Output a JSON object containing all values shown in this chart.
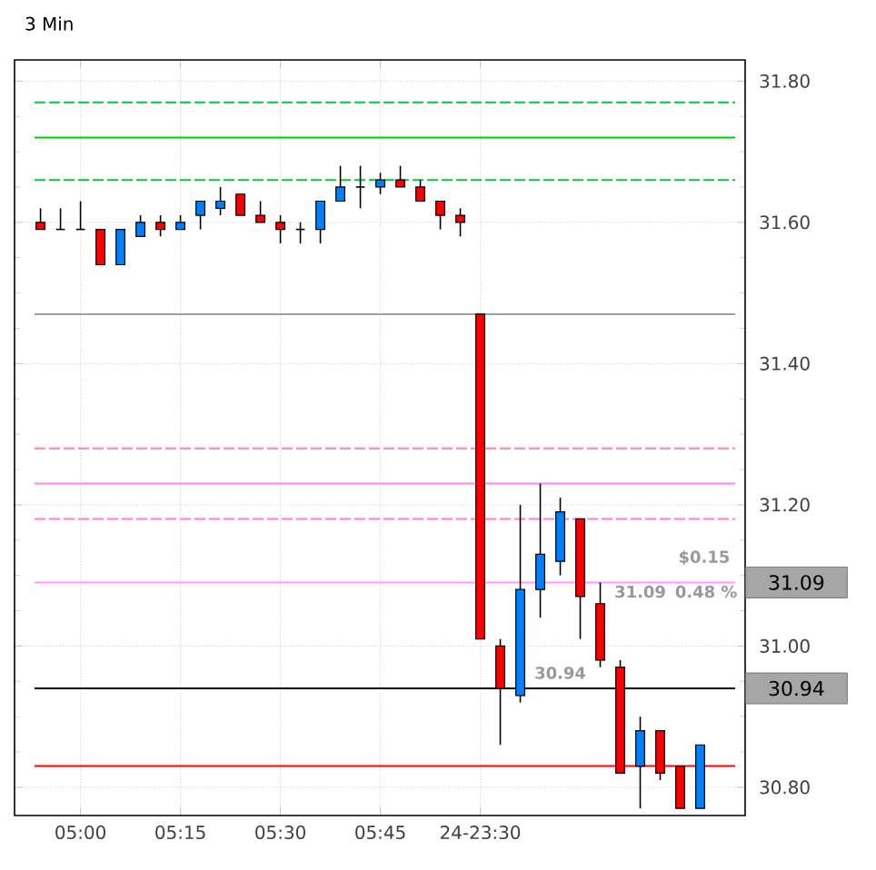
{
  "chart_data": {
    "type": "candlestick",
    "title": "3 Min",
    "categories": [
      null,
      null,
      "05:00",
      null,
      null,
      null,
      null,
      "05:15",
      null,
      null,
      null,
      null,
      "05:30",
      null,
      null,
      null,
      null,
      "05:45",
      null,
      null,
      null,
      null,
      "24-23:30",
      null,
      null,
      null,
      null,
      null,
      null,
      null,
      null,
      null,
      null,
      null
    ],
    "ohlc": [
      [
        31.6,
        31.62,
        31.59,
        31.59
      ],
      [
        31.59,
        31.62,
        31.59,
        31.59
      ],
      [
        31.59,
        31.63,
        31.59,
        31.59
      ],
      [
        31.59,
        31.59,
        31.54,
        31.54
      ],
      [
        31.54,
        31.59,
        31.54,
        31.59
      ],
      [
        31.58,
        31.61,
        31.58,
        31.6
      ],
      [
        31.6,
        31.61,
        31.58,
        31.59
      ],
      [
        31.59,
        31.61,
        31.59,
        31.6
      ],
      [
        31.61,
        31.63,
        31.59,
        31.63
      ],
      [
        31.62,
        31.65,
        31.61,
        31.63
      ],
      [
        31.64,
        31.64,
        31.61,
        31.61
      ],
      [
        31.61,
        31.63,
        31.6,
        31.6
      ],
      [
        31.6,
        31.61,
        31.57,
        31.59
      ],
      [
        31.59,
        31.6,
        31.57,
        31.59
      ],
      [
        31.59,
        31.63,
        31.57,
        31.63
      ],
      [
        31.63,
        31.68,
        31.63,
        31.65
      ],
      [
        31.65,
        31.68,
        31.62,
        31.65
      ],
      [
        31.65,
        31.67,
        31.64,
        31.66
      ],
      [
        31.66,
        31.68,
        31.65,
        31.65
      ],
      [
        31.65,
        31.66,
        31.63,
        31.63
      ],
      [
        31.63,
        31.63,
        31.59,
        31.61
      ],
      [
        31.61,
        31.62,
        31.58,
        31.6
      ],
      [
        31.47,
        31.47,
        31.01,
        31.01
      ],
      [
        31.0,
        31.01,
        30.86,
        30.94
      ],
      [
        30.93,
        31.2,
        30.92,
        31.08
      ],
      [
        31.08,
        31.23,
        31.04,
        31.13
      ],
      [
        31.12,
        31.21,
        31.1,
        31.19
      ],
      [
        31.18,
        31.18,
        31.01,
        31.07
      ],
      [
        31.06,
        31.09,
        30.97,
        30.98
      ],
      [
        30.97,
        30.98,
        30.82,
        30.82
      ],
      [
        30.83,
        30.9,
        30.77,
        30.88
      ],
      [
        30.88,
        30.88,
        30.81,
        30.82
      ],
      [
        30.83,
        30.83,
        30.77,
        30.77
      ],
      [
        30.77,
        30.86,
        30.77,
        30.86
      ]
    ],
    "colors": [
      "#ff0000",
      "#000000",
      "#000000",
      "#ff0000",
      "#0080ff",
      "#0080ff",
      "#ff0000",
      "#0080ff",
      "#0080ff",
      "#0080ff",
      "#ff0000",
      "#ff0000",
      "#ff0000",
      "#000000",
      "#0080ff",
      "#0080ff",
      "#000000",
      "#0080ff",
      "#ff0000",
      "#ff0000",
      "#ff0000",
      "#ff0000",
      "#ff0000",
      "#ff0000",
      "#0080ff",
      "#0080ff",
      "#0080ff",
      "#ff0000",
      "#ff0000",
      "#ff0000",
      "#0080ff",
      "#ff0000",
      "#ff0000",
      "#0080ff"
    ],
    "ylim": [
      30.76,
      31.83
    ],
    "yticks": [
      {
        "value": 30.8,
        "label": "30.80"
      },
      {
        "value": 31.0,
        "label": "31.00"
      },
      {
        "value": 31.2,
        "label": "31.20"
      },
      {
        "value": 31.4,
        "label": "31.40"
      },
      {
        "value": 31.6,
        "label": "31.60"
      },
      {
        "value": 31.8,
        "label": "31.80"
      }
    ],
    "grid": true,
    "ref_lines": [
      {
        "axis": "y",
        "value": 31.77,
        "color": "#00cc33",
        "line_style": "dashed"
      },
      {
        "axis": "y",
        "value": 31.72,
        "color": "#00cc00",
        "line_style": "solid"
      },
      {
        "axis": "y",
        "value": 31.66,
        "color": "#00cc33",
        "line_style": "dashed"
      },
      {
        "axis": "y",
        "value": 31.47,
        "color": "#a0a0a0",
        "line_style": "solid"
      },
      {
        "axis": "y",
        "value": 31.28,
        "color": "#ff80c0",
        "line_style": "dashed"
      },
      {
        "axis": "y",
        "value": 31.23,
        "color": "#ff80ff",
        "line_style": "solid"
      },
      {
        "axis": "y",
        "value": 31.18,
        "color": "#ff80c0",
        "line_style": "dashed"
      },
      {
        "axis": "y",
        "value": 31.09,
        "color": "#ff99ff",
        "line_style": "solid",
        "label": "31.09"
      },
      {
        "axis": "y",
        "value": 30.94,
        "color": "#000000",
        "line_style": "solid",
        "label": "30.94"
      },
      {
        "axis": "y",
        "value": 30.83,
        "color": "#ff0000",
        "line_style": "solid"
      }
    ],
    "annotations": [
      "$0.15",
      "31.09",
      "0.48 %",
      "30.94"
    ]
  }
}
